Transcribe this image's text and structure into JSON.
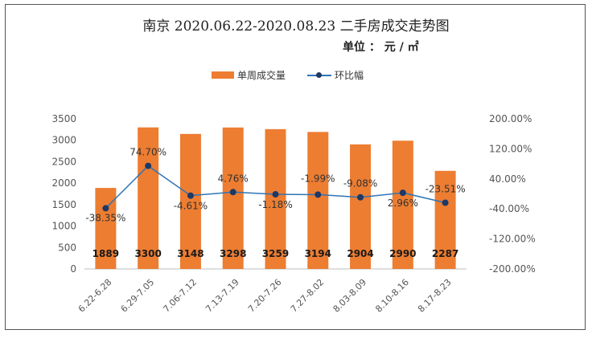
{
  "title": "南京 2020.06.22-2020.08.23  二手房成交走势图",
  "unit_label": "单位 ： 元 / ㎡",
  "colors": {
    "bar": "#ED7D31",
    "line": "#2E75B6",
    "marker": "#1F3864",
    "axis_text": "#555555"
  },
  "chart_data": {
    "type": "bar",
    "categories": [
      "6.22-6.28",
      "6.29-7.05",
      "7.06-7.12",
      "7.13-7.19",
      "7.20-7.26",
      "7.27-8.02",
      "8.03-8.09",
      "8.10-8.16",
      "8.17-8.23"
    ],
    "series": [
      {
        "name": "单周成交量",
        "type": "bar",
        "axis": "left",
        "values": [
          1889,
          3300,
          3148,
          3298,
          3259,
          3194,
          2904,
          2990,
          2287
        ],
        "labels": [
          "1889",
          "3300",
          "3148",
          "3298",
          "3259",
          "3194",
          "2904",
          "2990",
          "2287"
        ]
      },
      {
        "name": "环比幅",
        "type": "line",
        "axis": "right",
        "values": [
          -38.35,
          74.7,
          -4.61,
          4.76,
          -1.18,
          -1.99,
          -9.08,
          2.96,
          -23.51
        ],
        "labels": [
          "-38.35%",
          "74.70%",
          "-4.61%",
          "4.76%",
          "-1.18%",
          "-1.99%",
          "-9.08%",
          "2.96%",
          "-23.51%"
        ]
      }
    ],
    "y_left": {
      "ylim": [
        0,
        3500
      ],
      "ticks": [
        "0",
        "500",
        "1000",
        "1500",
        "2000",
        "2500",
        "3000",
        "3500"
      ]
    },
    "y_right": {
      "ylim": [
        -200,
        200
      ],
      "ticks": [
        "-200.00%",
        "-120.00%",
        "-40.00%",
        "40.00%",
        "120.00%",
        "200.00%"
      ]
    },
    "legend_position": "top-center",
    "grid": false
  }
}
